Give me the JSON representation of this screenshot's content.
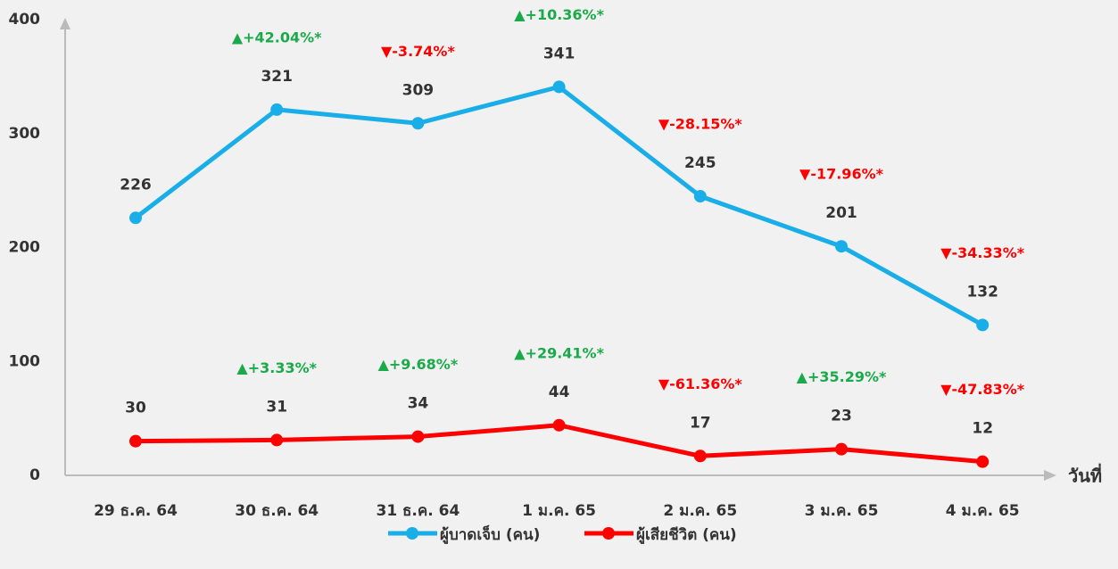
{
  "chart_data": {
    "type": "line",
    "x_label": "วันที่",
    "categories": [
      "29 ธ.ค. 64",
      "30 ธ.ค. 64",
      "31 ธ.ค. 64",
      "1 ม.ค. 65",
      "2 ม.ค. 65",
      "3 ม.ค. 65",
      "4 ม.ค. 65"
    ],
    "series": [
      {
        "name": "ผู้บาดเจ็บ (คน)",
        "color": "#1aaee8",
        "values": [
          226,
          321,
          309,
          341,
          245,
          201,
          132
        ],
        "changes": [
          null,
          "▲+42.04%*",
          "▼-3.74%*",
          "▲+10.36%*",
          "▼-28.15%*",
          "▼-17.96%*",
          "▼-34.33%*"
        ]
      },
      {
        "name": "ผู้เสียชีวิต (คน)",
        "color": "#ff0000",
        "values": [
          30,
          31,
          34,
          44,
          17,
          23,
          12
        ],
        "changes": [
          null,
          "▲+3.33%*",
          "▲+9.68%*",
          "▲+29.41%*",
          "▼-61.36%*",
          "▲+35.29%*",
          "▼-47.83%*"
        ]
      }
    ],
    "up_color": "#1aaa4a",
    "down_color": "#ff0000",
    "ylim": [
      0,
      400
    ],
    "yticks": [
      0,
      100,
      200,
      300,
      400
    ],
    "grid": false
  }
}
